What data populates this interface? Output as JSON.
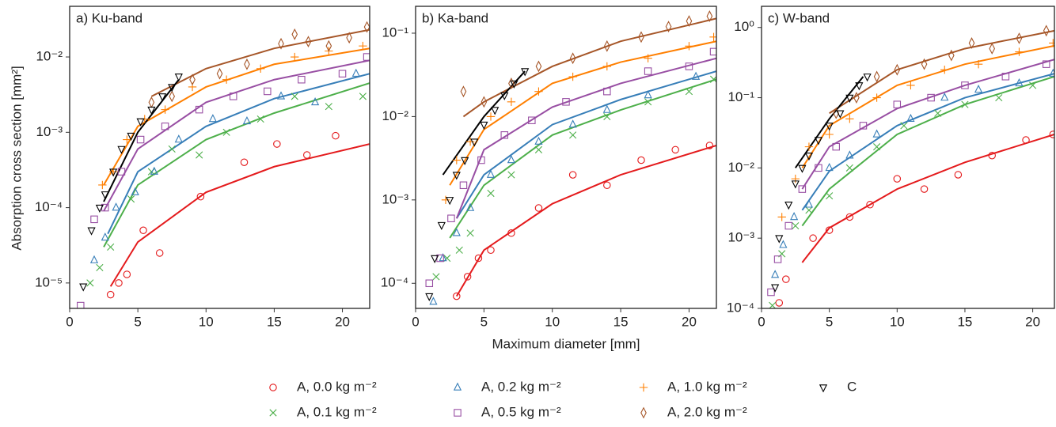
{
  "chart_data": [
    {
      "type": "scatter",
      "title": "a) Ku-band",
      "ylabel": "Absorption cross section [mm²]",
      "log_y": true,
      "xlim": [
        0,
        22
      ],
      "xticks": [
        0,
        5,
        10,
        15,
        20
      ],
      "ylim": [
        4.6e-06,
        0.047
      ],
      "yticks": [
        {
          "value": 1e-05,
          "label": "10⁻⁵"
        },
        {
          "value": 0.0001,
          "label": "10⁻⁴"
        },
        {
          "value": 0.001,
          "label": "10⁻³"
        },
        {
          "value": 0.01,
          "label": "10⁻²"
        }
      ],
      "series": [
        {
          "name": "A, 0.0 kg m⁻²",
          "color": "#e41a1c",
          "marker": "circle",
          "x": [
            3.0,
            3.6,
            4.2,
            5.4,
            6.6,
            9.6,
            12.8,
            15.2,
            17.4,
            19.5
          ],
          "values": [
            7e-06,
            1e-05,
            1.3e-05,
            5e-05,
            2.5e-05,
            0.00014,
            0.0004,
            0.0007,
            0.0005,
            0.0009
          ]
        },
        {
          "name": "A, 0.1 kg m⁻²",
          "color": "#4daf4a",
          "marker": "x",
          "x": [
            1.5,
            2.2,
            3.0,
            4.5,
            6.0,
            7.5,
            9.5,
            11.5,
            14.0,
            16.5,
            19.0,
            21.5
          ],
          "values": [
            1e-05,
            1.6e-05,
            3e-05,
            0.00013,
            0.0003,
            0.0006,
            0.0005,
            0.001,
            0.0015,
            0.003,
            0.0022,
            0.003
          ]
        },
        {
          "name": "A, 0.2 kg m⁻²",
          "color": "#377eb8",
          "marker": "triangle",
          "x": [
            1.8,
            2.6,
            3.4,
            4.8,
            6.2,
            8.0,
            10.5,
            13.0,
            15.5,
            18.0,
            21.0
          ],
          "values": [
            2e-05,
            4e-05,
            0.0001,
            0.00016,
            0.0003,
            0.0008,
            0.0015,
            0.0014,
            0.003,
            0.0025,
            0.006
          ]
        },
        {
          "name": "A, 0.5 kg m⁻²",
          "color": "#984ea3",
          "marker": "square",
          "x": [
            0.8,
            1.8,
            2.6,
            3.8,
            5.2,
            7.0,
            9.5,
            12.0,
            14.5,
            17.0,
            20.0,
            21.8
          ],
          "values": [
            5e-06,
            7e-05,
            0.0001,
            0.0003,
            0.0008,
            0.0012,
            0.002,
            0.003,
            0.0035,
            0.005,
            0.006,
            0.01
          ]
        },
        {
          "name": "A, 1.0 kg m⁻²",
          "color": "#ff7f00",
          "marker": "plus",
          "x": [
            2.4,
            3.2,
            4.2,
            5.5,
            7.0,
            9.0,
            11.5,
            14.0,
            16.5,
            19.0,
            21.5
          ],
          "values": [
            0.0002,
            0.0003,
            0.0008,
            0.0015,
            0.002,
            0.004,
            0.005,
            0.007,
            0.01,
            0.012,
            0.014
          ]
        },
        {
          "name": "A, 2.0 kg m⁻²",
          "color": "#a65628",
          "marker": "diamond",
          "x": [
            6.0,
            7.5,
            9.0,
            11.0,
            13.0,
            15.5,
            16.5,
            17.5,
            19.0,
            20.5,
            21.8
          ],
          "values": [
            0.0025,
            0.003,
            0.005,
            0.006,
            0.008,
            0.015,
            0.02,
            0.016,
            0.014,
            0.018,
            0.025
          ]
        },
        {
          "name": "C",
          "color": "#000000",
          "marker": "tridown",
          "x": [
            1.0,
            1.6,
            2.2,
            2.6,
            3.2,
            3.8,
            4.5,
            5.2,
            6.0,
            6.8,
            7.5,
            8.0
          ],
          "values": [
            9e-06,
            5e-05,
            0.0001,
            0.00015,
            0.0003,
            0.0006,
            0.0009,
            0.0014,
            0.002,
            0.003,
            0.004,
            0.0055
          ]
        }
      ],
      "fits": [
        {
          "color": "#e41a1c",
          "x": [
            3,
            5,
            10,
            15,
            22
          ],
          "values": [
            9e-06,
            3.5e-05,
            0.00016,
            0.00035,
            0.0007
          ]
        },
        {
          "color": "#4daf4a",
          "x": [
            2.5,
            5,
            10,
            15,
            22
          ],
          "values": [
            3e-05,
            0.0002,
            0.0008,
            0.0018,
            0.0045
          ]
        },
        {
          "color": "#377eb8",
          "x": [
            2.8,
            5,
            10,
            15,
            22
          ],
          "values": [
            4.5e-05,
            0.0003,
            0.0012,
            0.0028,
            0.006
          ]
        },
        {
          "color": "#984ea3",
          "x": [
            2.5,
            5,
            10,
            15,
            22
          ],
          "values": [
            9e-05,
            0.0006,
            0.0025,
            0.005,
            0.009
          ]
        },
        {
          "color": "#ff7f00",
          "x": [
            2.5,
            5,
            10,
            15,
            22
          ],
          "values": [
            0.0002,
            0.0012,
            0.004,
            0.008,
            0.013
          ]
        },
        {
          "color": "#a65628",
          "x": [
            6,
            10,
            15,
            22
          ],
          "values": [
            0.003,
            0.007,
            0.013,
            0.023
          ]
        },
        {
          "color": "#000000",
          "x": [
            2.5,
            5,
            8
          ],
          "values": [
            0.00012,
            0.001,
            0.005
          ]
        }
      ]
    },
    {
      "type": "scatter",
      "title": "b) Ka-band",
      "xlabel": "Maximum diameter [mm]",
      "log_y": true,
      "xlim": [
        0,
        22
      ],
      "xticks": [
        0,
        5,
        10,
        15,
        20
      ],
      "ylim": [
        5e-05,
        0.21
      ],
      "yticks": [
        {
          "value": 0.0001,
          "label": "10⁻⁴"
        },
        {
          "value": 0.001,
          "label": "10⁻³"
        },
        {
          "value": 0.01,
          "label": "10⁻²"
        },
        {
          "value": 0.1,
          "label": "10⁻¹"
        }
      ],
      "series": [
        {
          "color": "#e41a1c",
          "marker": "circle",
          "x": [
            3.0,
            3.8,
            4.6,
            5.5,
            7.0,
            9.0,
            11.5,
            14.0,
            16.5,
            19.0,
            21.5
          ],
          "values": [
            7e-05,
            0.00012,
            0.0002,
            0.00025,
            0.0004,
            0.0008,
            0.002,
            0.0015,
            0.003,
            0.004,
            0.0045
          ]
        },
        {
          "color": "#4daf4a",
          "marker": "x",
          "x": [
            1.5,
            2.3,
            3.2,
            4.0,
            5.5,
            7.0,
            9.0,
            11.5,
            14.0,
            17.0,
            20.0,
            21.8
          ],
          "values": [
            0.00012,
            0.0002,
            0.00025,
            0.0004,
            0.0012,
            0.002,
            0.004,
            0.006,
            0.01,
            0.015,
            0.02,
            0.028
          ]
        },
        {
          "color": "#377eb8",
          "marker": "triangle",
          "x": [
            1.3,
            2.0,
            3.0,
            4.0,
            5.5,
            7.0,
            9.0,
            11.5,
            14.0,
            17.0,
            20.5
          ],
          "values": [
            6e-05,
            0.0002,
            0.0004,
            0.0008,
            0.002,
            0.003,
            0.005,
            0.008,
            0.012,
            0.018,
            0.03
          ]
        },
        {
          "color": "#984ea3",
          "marker": "square",
          "x": [
            1.0,
            1.8,
            2.6,
            3.5,
            4.8,
            6.5,
            8.5,
            11.0,
            14.0,
            17.0,
            20.0,
            21.8
          ],
          "values": [
            0.0001,
            0.0002,
            0.0006,
            0.0015,
            0.003,
            0.006,
            0.009,
            0.015,
            0.02,
            0.035,
            0.04,
            0.06
          ]
        },
        {
          "color": "#ff7f00",
          "marker": "plus",
          "x": [
            2.2,
            3.0,
            4.0,
            5.5,
            7.0,
            9.0,
            11.5,
            14.0,
            17.0,
            20.0,
            21.8
          ],
          "values": [
            0.001,
            0.003,
            0.005,
            0.01,
            0.015,
            0.02,
            0.03,
            0.04,
            0.05,
            0.07,
            0.09
          ]
        },
        {
          "color": "#a65628",
          "marker": "diamond",
          "x": [
            3.5,
            5.0,
            7.0,
            9.0,
            11.5,
            14.0,
            16.5,
            18.5,
            20.0,
            21.5
          ],
          "values": [
            0.02,
            0.015,
            0.025,
            0.04,
            0.05,
            0.07,
            0.09,
            0.12,
            0.14,
            0.16
          ]
        },
        {
          "color": "#000000",
          "marker": "tridown",
          "x": [
            1.0,
            1.4,
            1.9,
            2.5,
            3.0,
            3.6,
            4.3,
            5.0,
            5.8,
            6.5,
            7.2,
            8.0
          ],
          "values": [
            7e-05,
            0.0002,
            0.0005,
            0.001,
            0.002,
            0.003,
            0.005,
            0.008,
            0.012,
            0.018,
            0.025,
            0.035
          ]
        }
      ],
      "fits": [
        {
          "color": "#e41a1c",
          "x": [
            3,
            5,
            10,
            15,
            22
          ],
          "values": [
            7e-05,
            0.00025,
            0.0009,
            0.002,
            0.0045
          ]
        },
        {
          "color": "#4daf4a",
          "x": [
            2.5,
            5,
            10,
            15,
            22
          ],
          "values": [
            0.00035,
            0.0015,
            0.006,
            0.012,
            0.028
          ]
        },
        {
          "color": "#377eb8",
          "x": [
            3,
            5,
            10,
            15,
            22
          ],
          "values": [
            0.0006,
            0.002,
            0.008,
            0.016,
            0.035
          ]
        },
        {
          "color": "#984ea3",
          "x": [
            3,
            5,
            10,
            15,
            22
          ],
          "values": [
            0.0006,
            0.004,
            0.013,
            0.025,
            0.05
          ]
        },
        {
          "color": "#ff7f00",
          "x": [
            2.5,
            5,
            10,
            15,
            22
          ],
          "values": [
            0.0015,
            0.007,
            0.025,
            0.045,
            0.08
          ]
        },
        {
          "color": "#a65628",
          "x": [
            3.5,
            5,
            10,
            15,
            22
          ],
          "values": [
            0.01,
            0.015,
            0.04,
            0.08,
            0.15
          ]
        },
        {
          "color": "#000000",
          "x": [
            2,
            5,
            8
          ],
          "values": [
            0.002,
            0.01,
            0.035
          ]
        }
      ]
    },
    {
      "type": "scatter",
      "title": "c) W-band",
      "log_y": true,
      "xlim": [
        0,
        21.6
      ],
      "xticks": [
        0,
        5,
        10,
        15,
        20
      ],
      "ylim": [
        0.0001,
        2
      ],
      "yticks": [
        {
          "value": 0.0001,
          "label": "10⁻⁴"
        },
        {
          "value": 0.001,
          "label": "10⁻³"
        },
        {
          "value": 0.01,
          "label": "10⁻²"
        },
        {
          "value": 0.1,
          "label": "10⁻¹"
        },
        {
          "value": 1,
          "label": "10⁰"
        }
      ],
      "series": [
        {
          "color": "#e41a1c",
          "marker": "circle",
          "x": [
            1.3,
            1.8,
            3.8,
            5.0,
            6.5,
            8.0,
            10.0,
            12.0,
            14.5,
            17.0,
            19.5,
            21.5
          ],
          "values": [
            0.00012,
            0.00026,
            0.001,
            0.0013,
            0.002,
            0.003,
            0.007,
            0.005,
            0.008,
            0.015,
            0.025,
            0.03
          ]
        },
        {
          "color": "#4daf4a",
          "marker": "x",
          "x": [
            0.8,
            1.5,
            2.5,
            3.5,
            5.0,
            6.5,
            8.5,
            10.5,
            13.0,
            15.0,
            17.5,
            20.0
          ],
          "values": [
            0.00011,
            0.0006,
            0.0015,
            0.0025,
            0.004,
            0.01,
            0.02,
            0.04,
            0.06,
            0.08,
            0.1,
            0.15
          ]
        },
        {
          "color": "#377eb8",
          "marker": "triangle",
          "x": [
            1.0,
            1.6,
            2.4,
            3.5,
            5.0,
            6.5,
            8.5,
            11.0,
            13.5,
            16.0,
            19.0,
            21.5
          ],
          "values": [
            0.0003,
            0.0008,
            0.002,
            0.003,
            0.01,
            0.015,
            0.03,
            0.05,
            0.1,
            0.13,
            0.16,
            0.22
          ]
        },
        {
          "color": "#984ea3",
          "marker": "square",
          "x": [
            0.7,
            1.2,
            2.0,
            3.0,
            4.2,
            5.5,
            7.5,
            10.0,
            12.5,
            15.0,
            18.0,
            21.0
          ],
          "values": [
            0.00017,
            0.0005,
            0.0015,
            0.005,
            0.01,
            0.02,
            0.04,
            0.08,
            0.1,
            0.15,
            0.2,
            0.3
          ]
        },
        {
          "color": "#ff7f00",
          "marker": "plus",
          "x": [
            1.5,
            2.5,
            3.5,
            5.0,
            6.5,
            8.5,
            11.0,
            13.5,
            16.0,
            19.0,
            21.5
          ],
          "values": [
            0.002,
            0.007,
            0.02,
            0.03,
            0.05,
            0.1,
            0.15,
            0.25,
            0.3,
            0.45,
            0.6
          ]
        },
        {
          "color": "#a65628",
          "marker": "diamond",
          "x": [
            5.5,
            7.0,
            8.5,
            10.0,
            12.0,
            14.0,
            15.5,
            17.0,
            19.0,
            21.0
          ],
          "values": [
            0.06,
            0.1,
            0.2,
            0.25,
            0.3,
            0.4,
            0.6,
            0.5,
            0.7,
            0.9
          ]
        },
        {
          "color": "#000000",
          "marker": "tridown",
          "x": [
            1.0,
            1.3,
            2.0,
            2.5,
            3.0,
            3.5,
            4.2,
            5.0,
            5.8,
            6.5,
            7.2,
            7.8
          ],
          "values": [
            0.0002,
            0.001,
            0.003,
            0.006,
            0.01,
            0.015,
            0.025,
            0.04,
            0.06,
            0.1,
            0.15,
            0.2
          ]
        }
      ],
      "fits": [
        {
          "color": "#e41a1c",
          "x": [
            3,
            5,
            10,
            15,
            21.6
          ],
          "values": [
            0.00045,
            0.0014,
            0.005,
            0.012,
            0.03
          ]
        },
        {
          "color": "#4daf4a",
          "x": [
            3,
            5,
            10,
            15,
            21.6
          ],
          "values": [
            0.0015,
            0.005,
            0.03,
            0.08,
            0.2
          ]
        },
        {
          "color": "#377eb8",
          "x": [
            3,
            5,
            10,
            15,
            21.6
          ],
          "values": [
            0.0025,
            0.009,
            0.04,
            0.1,
            0.22
          ]
        },
        {
          "color": "#984ea3",
          "x": [
            3,
            5,
            10,
            15,
            21.6
          ],
          "values": [
            0.005,
            0.02,
            0.07,
            0.15,
            0.35
          ]
        },
        {
          "color": "#ff7f00",
          "x": [
            3,
            5,
            10,
            15,
            21.6
          ],
          "values": [
            0.01,
            0.04,
            0.15,
            0.3,
            0.55
          ]
        },
        {
          "color": "#a65628",
          "x": [
            5,
            10,
            15,
            21.6
          ],
          "values": [
            0.06,
            0.25,
            0.5,
            0.9
          ]
        },
        {
          "color": "#000000",
          "x": [
            2.5,
            5,
            7.5
          ],
          "values": [
            0.01,
            0.05,
            0.2
          ]
        }
      ]
    }
  ]
}
